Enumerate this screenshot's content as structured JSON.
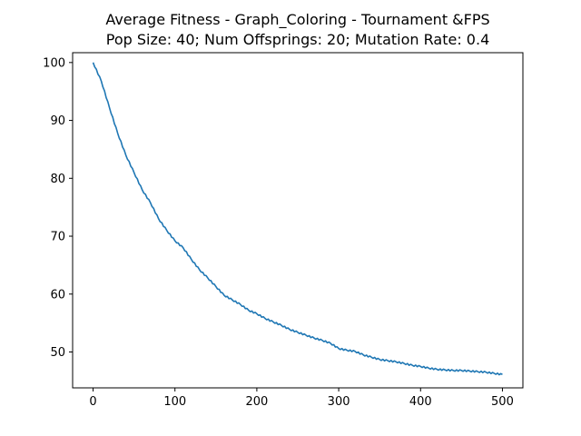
{
  "chart_data": {
    "type": "line",
    "title": "Average Fitness - Graph_Coloring - Tournament &FPS",
    "subtitle": "Pop Size: 40; Num Offsprings: 20; Mutation Rate: 0.4",
    "xlabel": "",
    "ylabel": "",
    "xlim": [
      -25,
      525
    ],
    "ylim": [
      43.8,
      101.7
    ],
    "xticks": [
      0,
      100,
      200,
      300,
      400,
      500
    ],
    "yticks": [
      50,
      60,
      70,
      80,
      90,
      100
    ],
    "grid": false,
    "legend": "none",
    "series": [
      {
        "name": "Average Fitness",
        "color": "#1f77b4",
        "x": [
          0,
          10,
          20,
          30,
          40,
          50,
          60,
          70,
          80,
          90,
          100,
          110,
          120,
          130,
          140,
          150,
          160,
          170,
          180,
          190,
          200,
          210,
          220,
          230,
          240,
          250,
          260,
          270,
          280,
          290,
          300,
          310,
          320,
          330,
          340,
          350,
          360,
          370,
          380,
          390,
          400,
          410,
          420,
          430,
          440,
          450,
          460,
          470,
          480,
          490,
          500
        ],
        "y": [
          100.0,
          96.8,
          92.2,
          87.8,
          84.0,
          81.0,
          78.0,
          75.8,
          73.0,
          71.0,
          69.2,
          68.0,
          66.0,
          64.2,
          62.8,
          61.3,
          59.8,
          59.0,
          58.2,
          57.2,
          56.6,
          55.8,
          55.2,
          54.6,
          53.9,
          53.4,
          52.9,
          52.4,
          52.0,
          51.5,
          50.6,
          50.3,
          50.1,
          49.5,
          49.1,
          48.7,
          48.5,
          48.3,
          48.0,
          47.7,
          47.5,
          47.2,
          47.0,
          46.9,
          46.8,
          46.8,
          46.7,
          46.6,
          46.5,
          46.3,
          46.1
        ]
      }
    ]
  }
}
